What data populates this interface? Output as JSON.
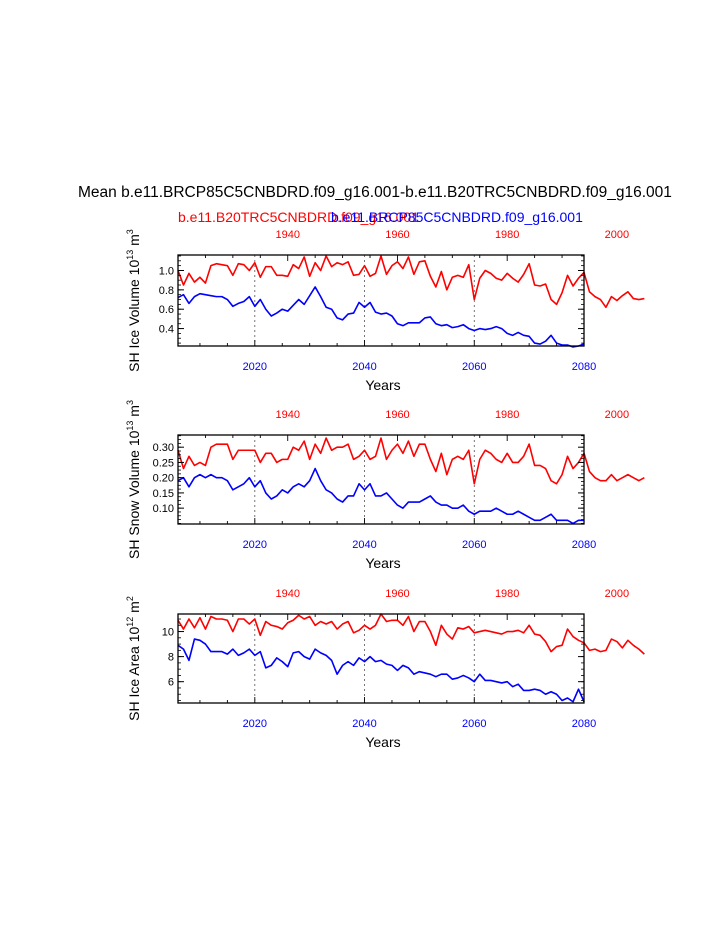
{
  "page_title": "Mean b.e11.BRCP85C5CNBDRD.f09_g16.001-b.e11.B20TRC5CNBDRD.f09_g16.001",
  "colors": {
    "series_red": "#ff0000",
    "series_blue": "#0000ff",
    "axis": "#000000"
  },
  "chart_data": [
    {
      "type": "line",
      "ylabel": "SH Ice Volume 10^13 m^3",
      "ylabel_base": "SH Ice Volume 10",
      "ylabel_exp": "13",
      "ylabel_unit": "m",
      "ylabel_unit_exp": "3",
      "xlabel": "Years",
      "ylim": [
        0.22,
        1.16
      ],
      "yticks": [
        "0.4",
        "0.6",
        "0.8",
        "1.0"
      ],
      "series": [
        {
          "name": "b.e11.B20TRC5CNBDRD.f09_g16.001",
          "x_axis": "top",
          "x": [
            1920,
            1921,
            1922,
            1923,
            1924,
            1925,
            1926,
            1927,
            1928,
            1929,
            1930,
            1931,
            1932,
            1933,
            1934,
            1935,
            1936,
            1937,
            1938,
            1939,
            1940,
            1941,
            1942,
            1943,
            1944,
            1945,
            1946,
            1947,
            1948,
            1949,
            1950,
            1951,
            1952,
            1953,
            1954,
            1955,
            1956,
            1957,
            1958,
            1959,
            1960,
            1961,
            1962,
            1963,
            1964,
            1965,
            1966,
            1967,
            1968,
            1969,
            1970,
            1971,
            1972,
            1973,
            1974,
            1975,
            1976,
            1977,
            1978,
            1979,
            1980,
            1981,
            1982,
            1983,
            1984,
            1985,
            1986,
            1987,
            1988,
            1989,
            1990,
            1991,
            1992,
            1993,
            1994,
            1995,
            1996,
            1997,
            1998,
            1999,
            2000,
            2001,
            2002,
            2003,
            2004,
            2005
          ],
          "y": [
            1.0,
            0.85,
            0.97,
            0.88,
            0.93,
            0.87,
            1.05,
            1.07,
            1.06,
            1.05,
            0.95,
            1.07,
            1.06,
            1.0,
            1.08,
            0.93,
            1.04,
            1.04,
            0.95,
            0.95,
            0.94,
            1.06,
            1.02,
            1.14,
            0.94,
            1.08,
            1.0,
            1.15,
            1.04,
            1.08,
            1.06,
            1.09,
            0.95,
            0.96,
            1.05,
            0.94,
            0.97,
            1.15,
            0.96,
            1.05,
            1.09,
            1.02,
            1.14,
            0.96,
            1.09,
            1.1,
            0.94,
            0.83,
            0.99,
            0.8,
            0.93,
            0.95,
            0.93,
            1.06,
            0.7,
            0.92,
            1.0,
            0.97,
            0.92,
            0.9,
            0.97,
            0.92,
            0.88,
            0.96,
            1.07,
            0.85,
            0.84,
            0.86,
            0.7,
            0.65,
            0.77,
            0.95,
            0.84,
            0.92,
            0.98,
            0.78,
            0.73,
            0.7,
            0.62,
            0.73,
            0.69,
            0.74,
            0.78,
            0.71,
            0.7,
            0.71
          ]
        },
        {
          "name": "b.e11.BRCP85C5CNBDRD.f09_g16.001",
          "x_axis": "bottom",
          "x": [
            2006,
            2007,
            2008,
            2009,
            2010,
            2011,
            2012,
            2013,
            2014,
            2015,
            2016,
            2017,
            2018,
            2019,
            2020,
            2021,
            2022,
            2023,
            2024,
            2025,
            2026,
            2027,
            2028,
            2029,
            2030,
            2031,
            2032,
            2033,
            2034,
            2035,
            2036,
            2037,
            2038,
            2039,
            2040,
            2041,
            2042,
            2043,
            2044,
            2045,
            2046,
            2047,
            2048,
            2049,
            2050,
            2051,
            2052,
            2053,
            2054,
            2055,
            2056,
            2057,
            2058,
            2059,
            2060,
            2061,
            2062,
            2063,
            2064,
            2065,
            2066,
            2067,
            2068,
            2069,
            2070,
            2071,
            2072,
            2073,
            2074,
            2075,
            2076,
            2077,
            2078,
            2079,
            2080
          ],
          "y": [
            0.72,
            0.75,
            0.66,
            0.73,
            0.76,
            0.75,
            0.74,
            0.73,
            0.73,
            0.7,
            0.63,
            0.66,
            0.68,
            0.73,
            0.63,
            0.7,
            0.6,
            0.53,
            0.56,
            0.6,
            0.58,
            0.64,
            0.7,
            0.65,
            0.74,
            0.83,
            0.73,
            0.62,
            0.6,
            0.51,
            0.49,
            0.55,
            0.56,
            0.67,
            0.62,
            0.67,
            0.57,
            0.55,
            0.56,
            0.53,
            0.45,
            0.43,
            0.46,
            0.46,
            0.46,
            0.51,
            0.52,
            0.45,
            0.43,
            0.44,
            0.41,
            0.42,
            0.44,
            0.4,
            0.38,
            0.4,
            0.39,
            0.4,
            0.42,
            0.4,
            0.35,
            0.33,
            0.36,
            0.33,
            0.32,
            0.25,
            0.24,
            0.27,
            0.33,
            0.25,
            0.23,
            0.23,
            0.21,
            0.22,
            0.24
          ]
        }
      ]
    },
    {
      "type": "line",
      "ylabel": "SH Snow Volume 10^13 m^3",
      "ylabel_base": "SH Snow Volume 10",
      "ylabel_exp": "13",
      "ylabel_unit": "m",
      "ylabel_unit_exp": "3",
      "xlabel": "Years",
      "ylim": [
        0.048,
        0.34
      ],
      "yticks": [
        "0.10",
        "0.15",
        "0.20",
        "0.25",
        "0.30"
      ],
      "series": [
        {
          "name": "b.e11.B20TRC5CNBDRD.f09_g16.001",
          "x_axis": "top",
          "x": [
            1920,
            1921,
            1922,
            1923,
            1924,
            1925,
            1926,
            1927,
            1928,
            1929,
            1930,
            1931,
            1932,
            1933,
            1934,
            1935,
            1936,
            1937,
            1938,
            1939,
            1940,
            1941,
            1942,
            1943,
            1944,
            1945,
            1946,
            1947,
            1948,
            1949,
            1950,
            1951,
            1952,
            1953,
            1954,
            1955,
            1956,
            1957,
            1958,
            1959,
            1960,
            1961,
            1962,
            1963,
            1964,
            1965,
            1966,
            1967,
            1968,
            1969,
            1970,
            1971,
            1972,
            1973,
            1974,
            1975,
            1976,
            1977,
            1978,
            1979,
            1980,
            1981,
            1982,
            1983,
            1984,
            1985,
            1986,
            1987,
            1988,
            1989,
            1990,
            1991,
            1992,
            1993,
            1994,
            1995,
            1996,
            1997,
            1998,
            1999,
            2000,
            2001,
            2002,
            2003,
            2004,
            2005
          ],
          "y": [
            0.29,
            0.23,
            0.27,
            0.24,
            0.25,
            0.24,
            0.3,
            0.31,
            0.31,
            0.31,
            0.26,
            0.29,
            0.29,
            0.29,
            0.29,
            0.25,
            0.28,
            0.28,
            0.25,
            0.26,
            0.26,
            0.3,
            0.29,
            0.32,
            0.26,
            0.31,
            0.28,
            0.33,
            0.29,
            0.3,
            0.3,
            0.31,
            0.26,
            0.27,
            0.29,
            0.26,
            0.27,
            0.33,
            0.26,
            0.29,
            0.31,
            0.28,
            0.32,
            0.27,
            0.31,
            0.31,
            0.26,
            0.22,
            0.28,
            0.21,
            0.26,
            0.27,
            0.26,
            0.29,
            0.18,
            0.26,
            0.29,
            0.28,
            0.26,
            0.25,
            0.28,
            0.25,
            0.25,
            0.27,
            0.31,
            0.24,
            0.24,
            0.23,
            0.19,
            0.18,
            0.21,
            0.27,
            0.23,
            0.25,
            0.28,
            0.22,
            0.2,
            0.19,
            0.19,
            0.21,
            0.19,
            0.2,
            0.21,
            0.2,
            0.19,
            0.2
          ]
        },
        {
          "name": "b.e11.BRCP85C5CNBDRD.f09_g16.001",
          "x_axis": "bottom",
          "x": [
            2006,
            2007,
            2008,
            2009,
            2010,
            2011,
            2012,
            2013,
            2014,
            2015,
            2016,
            2017,
            2018,
            2019,
            2020,
            2021,
            2022,
            2023,
            2024,
            2025,
            2026,
            2027,
            2028,
            2029,
            2030,
            2031,
            2032,
            2033,
            2034,
            2035,
            2036,
            2037,
            2038,
            2039,
            2040,
            2041,
            2042,
            2043,
            2044,
            2045,
            2046,
            2047,
            2048,
            2049,
            2050,
            2051,
            2052,
            2053,
            2054,
            2055,
            2056,
            2057,
            2058,
            2059,
            2060,
            2061,
            2062,
            2063,
            2064,
            2065,
            2066,
            2067,
            2068,
            2069,
            2070,
            2071,
            2072,
            2073,
            2074,
            2075,
            2076,
            2077,
            2078,
            2079,
            2080
          ],
          "y": [
            0.19,
            0.2,
            0.17,
            0.2,
            0.21,
            0.2,
            0.21,
            0.2,
            0.2,
            0.19,
            0.16,
            0.17,
            0.18,
            0.2,
            0.17,
            0.19,
            0.15,
            0.13,
            0.14,
            0.16,
            0.15,
            0.17,
            0.18,
            0.17,
            0.19,
            0.23,
            0.19,
            0.16,
            0.15,
            0.13,
            0.12,
            0.14,
            0.14,
            0.18,
            0.16,
            0.18,
            0.14,
            0.14,
            0.15,
            0.13,
            0.11,
            0.1,
            0.12,
            0.12,
            0.12,
            0.13,
            0.14,
            0.12,
            0.11,
            0.11,
            0.1,
            0.1,
            0.11,
            0.09,
            0.08,
            0.09,
            0.09,
            0.09,
            0.1,
            0.09,
            0.08,
            0.08,
            0.09,
            0.08,
            0.07,
            0.06,
            0.06,
            0.07,
            0.08,
            0.06,
            0.06,
            0.06,
            0.05,
            0.06,
            0.06
          ]
        }
      ]
    },
    {
      "type": "line",
      "ylabel": "SH Ice Area 10^12 m^2",
      "ylabel_base": "SH Ice Area 10",
      "ylabel_exp": "12",
      "ylabel_unit": "m",
      "ylabel_unit_exp": "2",
      "xlabel": "Years",
      "ylim": [
        4.3,
        11.4
      ],
      "yticks": [
        "6",
        "8",
        "10"
      ],
      "series": [
        {
          "name": "b.e11.B20TRC5CNBDRD.f09_g16.001",
          "x_axis": "top",
          "x": [
            1920,
            1921,
            1922,
            1923,
            1924,
            1925,
            1926,
            1927,
            1928,
            1929,
            1930,
            1931,
            1932,
            1933,
            1934,
            1935,
            1936,
            1937,
            1938,
            1939,
            1940,
            1941,
            1942,
            1943,
            1944,
            1945,
            1946,
            1947,
            1948,
            1949,
            1950,
            1951,
            1952,
            1953,
            1954,
            1955,
            1956,
            1957,
            1958,
            1959,
            1960,
            1961,
            1962,
            1963,
            1964,
            1965,
            1966,
            1967,
            1968,
            1969,
            1970,
            1971,
            1972,
            1973,
            1974,
            1975,
            1976,
            1977,
            1978,
            1979,
            1980,
            1981,
            1982,
            1983,
            1984,
            1985,
            1986,
            1987,
            1988,
            1989,
            1990,
            1991,
            1992,
            1993,
            1994,
            1995,
            1996,
            1997,
            1998,
            1999,
            2000,
            2001,
            2002,
            2003,
            2004,
            2005
          ],
          "y": [
            10.9,
            10.2,
            11.0,
            10.3,
            11.1,
            10.2,
            11.2,
            11.0,
            11.0,
            10.9,
            10.0,
            11.0,
            11.0,
            10.6,
            11.0,
            9.7,
            10.8,
            10.5,
            10.4,
            10.2,
            10.7,
            10.9,
            11.3,
            11.0,
            11.2,
            10.5,
            10.8,
            10.6,
            10.8,
            10.2,
            10.6,
            10.8,
            9.9,
            10.1,
            10.5,
            10.2,
            10.5,
            11.4,
            10.8,
            10.9,
            10.9,
            10.5,
            11.2,
            10.0,
            10.8,
            10.8,
            10.0,
            8.9,
            10.5,
            9.8,
            9.4,
            10.3,
            10.2,
            10.4,
            9.9,
            10.0,
            10.1,
            10.0,
            9.9,
            9.8,
            10.0,
            10.0,
            10.1,
            9.9,
            10.5,
            9.8,
            9.7,
            9.2,
            8.4,
            8.8,
            8.9,
            10.2,
            9.6,
            9.3,
            9.1,
            8.5,
            8.6,
            8.4,
            8.5,
            9.4,
            9.2,
            8.7,
            9.3,
            8.9,
            8.6,
            8.2
          ]
        },
        {
          "name": "b.e11.BRCP85C5CNBDRD.f09_g16.001",
          "x_axis": "bottom",
          "x": [
            2006,
            2007,
            2008,
            2009,
            2010,
            2011,
            2012,
            2013,
            2014,
            2015,
            2016,
            2017,
            2018,
            2019,
            2020,
            2021,
            2022,
            2023,
            2024,
            2025,
            2026,
            2027,
            2028,
            2029,
            2030,
            2031,
            2032,
            2033,
            2034,
            2035,
            2036,
            2037,
            2038,
            2039,
            2040,
            2041,
            2042,
            2043,
            2044,
            2045,
            2046,
            2047,
            2048,
            2049,
            2050,
            2051,
            2052,
            2053,
            2054,
            2055,
            2056,
            2057,
            2058,
            2059,
            2060,
            2061,
            2062,
            2063,
            2064,
            2065,
            2066,
            2067,
            2068,
            2069,
            2070,
            2071,
            2072,
            2073,
            2074,
            2075,
            2076,
            2077,
            2078,
            2079,
            2080
          ],
          "y": [
            8.9,
            8.6,
            7.7,
            9.4,
            9.3,
            9.0,
            8.4,
            8.4,
            8.4,
            8.2,
            8.6,
            8.1,
            8.3,
            8.6,
            8.1,
            8.4,
            7.1,
            7.3,
            7.9,
            7.6,
            7.2,
            8.3,
            8.4,
            8.0,
            7.8,
            8.6,
            8.3,
            8.1,
            7.7,
            6.6,
            7.3,
            7.6,
            7.3,
            7.9,
            7.6,
            8.0,
            7.6,
            7.7,
            7.4,
            7.3,
            6.9,
            7.3,
            7.1,
            6.6,
            6.8,
            6.7,
            6.6,
            6.4,
            6.6,
            6.6,
            6.2,
            6.3,
            6.5,
            6.3,
            6.0,
            6.6,
            6.1,
            6.1,
            6.0,
            5.9,
            6.0,
            5.6,
            5.8,
            5.3,
            5.3,
            5.4,
            5.3,
            5.0,
            5.2,
            5.0,
            4.5,
            4.7,
            4.4,
            5.4,
            4.4
          ]
        }
      ]
    }
  ],
  "top_axis_ticks": [
    "1940",
    "1960",
    "1980",
    "2000"
  ],
  "bottom_axis_ticks": [
    "2020",
    "2040",
    "2060",
    "2080"
  ]
}
